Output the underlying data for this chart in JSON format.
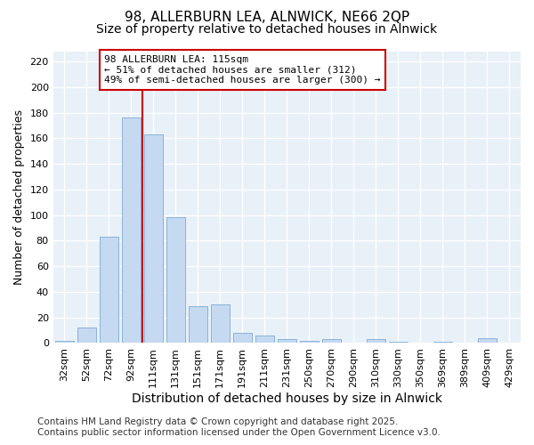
{
  "title_line1": "98, ALLERBURN LEA, ALNWICK, NE66 2QP",
  "title_line2": "Size of property relative to detached houses in Alnwick",
  "xlabel": "Distribution of detached houses by size in Alnwick",
  "ylabel": "Number of detached properties",
  "categories": [
    "32sqm",
    "52sqm",
    "72sqm",
    "92sqm",
    "111sqm",
    "131sqm",
    "151sqm",
    "171sqm",
    "191sqm",
    "211sqm",
    "231sqm",
    "250sqm",
    "270sqm",
    "290sqm",
    "310sqm",
    "330sqm",
    "350sqm",
    "369sqm",
    "389sqm",
    "409sqm",
    "429sqm"
  ],
  "values": [
    2,
    12,
    83,
    176,
    163,
    98,
    29,
    30,
    8,
    6,
    3,
    2,
    3,
    0,
    3,
    1,
    0,
    1,
    0,
    4,
    0
  ],
  "bar_color": "#c5d9f0",
  "bar_edge_color": "#8ab4d9",
  "vline_x": 3.5,
  "vline_color": "#cc0000",
  "annotation_text": "98 ALLERBURN LEA: 115sqm\n← 51% of detached houses are smaller (312)\n49% of semi-detached houses are larger (300) →",
  "annotation_box_facecolor": "#ffffff",
  "annotation_box_edgecolor": "#cc0000",
  "ylim": [
    0,
    228
  ],
  "yticks": [
    0,
    20,
    40,
    60,
    80,
    100,
    120,
    140,
    160,
    180,
    200,
    220
  ],
  "fig_background": "#ffffff",
  "ax_background": "#e8f0f8",
  "grid_color": "#ffffff",
  "footnote": "Contains HM Land Registry data © Crown copyright and database right 2025.\nContains public sector information licensed under the Open Government Licence v3.0.",
  "title_fontsize": 11,
  "subtitle_fontsize": 10,
  "xlabel_fontsize": 10,
  "ylabel_fontsize": 9,
  "tick_fontsize": 8,
  "annot_fontsize": 8,
  "footnote_fontsize": 7.5
}
